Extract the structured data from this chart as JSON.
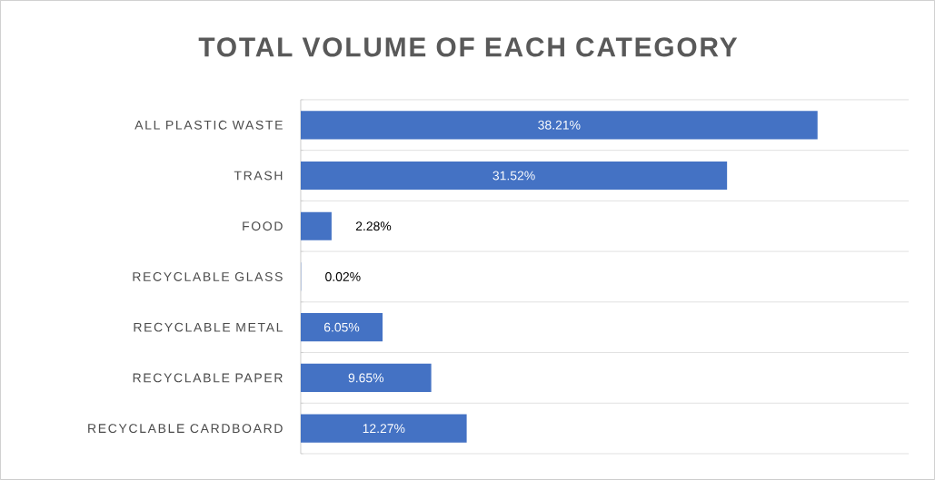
{
  "chart_data": {
    "type": "bar",
    "orientation": "horizontal",
    "title": "TOTAL VOLUME OF EACH CATEGORY",
    "categories": [
      "ALL PLASTIC WASTE",
      "TRASH",
      "FOOD",
      "RECYCLABLE GLASS",
      "RECYCLABLE METAL",
      "RECYCLABLE PAPER",
      "RECYCLABLE CARDBOARD"
    ],
    "values": [
      38.21,
      31.52,
      2.28,
      0.02,
      6.05,
      9.65,
      12.27
    ],
    "value_labels": [
      "38.21%",
      "31.52%",
      "2.28%",
      "0.02%",
      "6.05%",
      "9.65%",
      "12.27%"
    ],
    "color": "#4472c4",
    "grid": "y"
  }
}
